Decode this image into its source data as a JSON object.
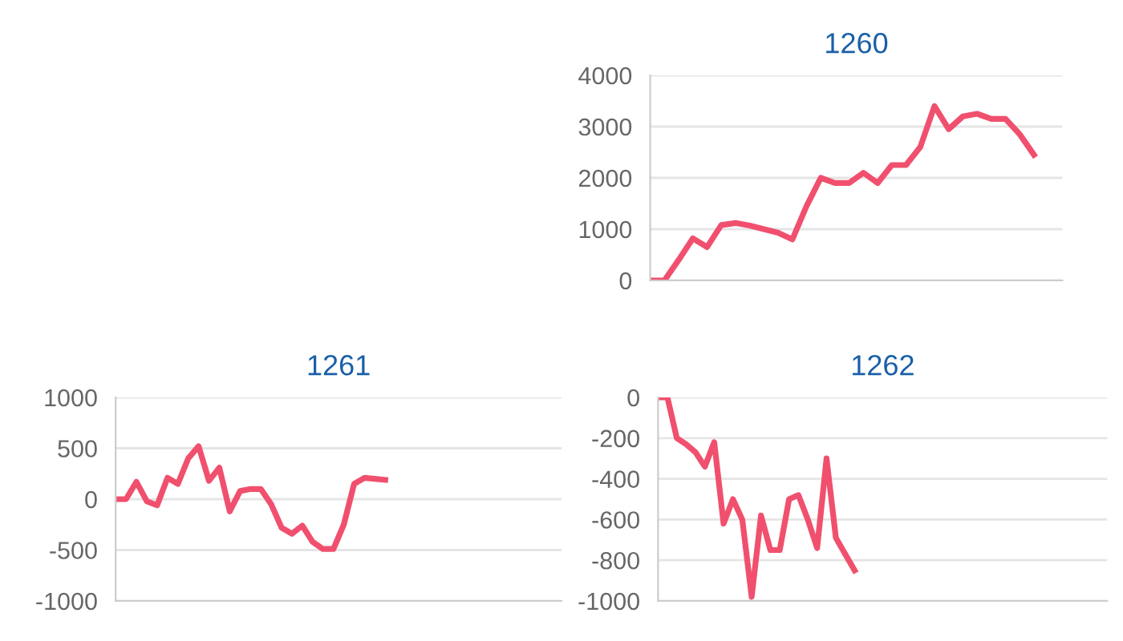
{
  "chart_data": [
    {
      "type": "line",
      "title": "1260",
      "categories": [
        null,
        null,
        null,
        null,
        null,
        null,
        null,
        null,
        null,
        null,
        null,
        null,
        null,
        null,
        null,
        null,
        null,
        null,
        null,
        null,
        null,
        null,
        null,
        null,
        null,
        null,
        null,
        null,
        null,
        null
      ],
      "series": [
        {
          "color": "#f0506e",
          "values": [
            0,
            0,
            400,
            820,
            650,
            1080,
            1120,
            1070,
            1000,
            930,
            800,
            1450,
            2000,
            1900,
            1900,
            2100,
            1900,
            2250,
            2250,
            2600,
            3400,
            2950,
            3200,
            3250,
            3150,
            3150,
            2850,
            2450,
            null,
            null
          ]
        }
      ],
      "ylim": [
        0,
        4000
      ],
      "yticks": [
        0,
        1000,
        2000,
        3000,
        4000
      ],
      "grid": "y",
      "tick_labels": "y",
      "marker": "none",
      "line_style": "solid"
    },
    {
      "type": "line",
      "title": "1261",
      "categories": [
        null,
        null,
        null,
        null,
        null,
        null,
        null,
        null,
        null,
        null,
        null,
        null,
        null,
        null,
        null,
        null,
        null,
        null,
        null,
        null,
        null,
        null,
        null,
        null,
        null,
        null,
        null,
        null,
        null,
        null,
        null,
        null,
        null,
        null,
        null,
        null,
        null,
        null,
        null,
        null,
        null,
        null,
        null,
        null
      ],
      "series": [
        {
          "color": "#f0506e",
          "values": [
            0,
            0,
            170,
            -20,
            -60,
            210,
            150,
            400,
            520,
            180,
            310,
            -120,
            80,
            100,
            100,
            -50,
            -280,
            -340,
            -260,
            -420,
            -490,
            -490,
            -250,
            150,
            210,
            200,
            190,
            null,
            null,
            null,
            null,
            null,
            null,
            null,
            null,
            null,
            null,
            null,
            null,
            null,
            null,
            null,
            null,
            null
          ]
        }
      ],
      "ylim": [
        -1000,
        1000
      ],
      "yticks": [
        -1000,
        -500,
        0,
        500,
        1000
      ],
      "grid": "y",
      "tick_labels": "y",
      "marker": "none",
      "line_style": "solid"
    },
    {
      "type": "line",
      "title": "1262",
      "categories": [
        null,
        null,
        null,
        null,
        null,
        null,
        null,
        null,
        null,
        null,
        null,
        null,
        null,
        null,
        null,
        null,
        null,
        null,
        null,
        null,
        null,
        null,
        null,
        null,
        null,
        null,
        null,
        null,
        null,
        null,
        null,
        null,
        null,
        null,
        null,
        null,
        null,
        null,
        null,
        null,
        null,
        null,
        null,
        null,
        null,
        null,
        null,
        null,
        null
      ],
      "series": [
        {
          "color": "#f0506e",
          "values": [
            0,
            0,
            -200,
            -230,
            -270,
            -340,
            -220,
            -620,
            -500,
            -600,
            -980,
            -580,
            -750,
            -750,
            -500,
            -480,
            -600,
            -740,
            -300,
            -690,
            -770,
            -850,
            null,
            null,
            null,
            null,
            null,
            null,
            null,
            null,
            null,
            null,
            null,
            null,
            null,
            null,
            null,
            null,
            null,
            null,
            null,
            null,
            null,
            null,
            null,
            null,
            null,
            null,
            null
          ]
        }
      ],
      "ylim": [
        -1000,
        0
      ],
      "yticks": [
        -1000,
        -800,
        -600,
        -400,
        -200,
        0
      ],
      "grid": "y",
      "tick_labels": "y",
      "marker": "none",
      "line_style": "solid"
    }
  ]
}
